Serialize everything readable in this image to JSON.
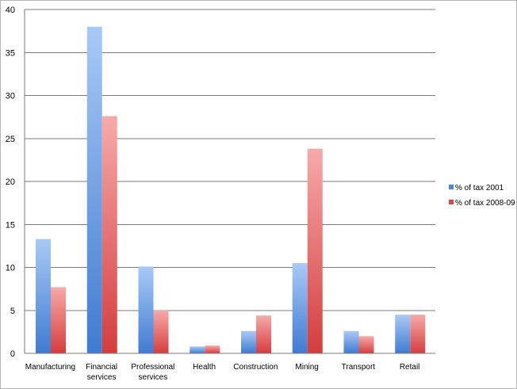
{
  "chart_data": {
    "type": "bar",
    "categories": [
      "Manufacturing",
      "Financial services",
      "Professional services",
      "Health",
      "Construction",
      "Mining",
      "Transport",
      "Retail"
    ],
    "category_lines": [
      [
        "Manufacturing"
      ],
      [
        "Financial",
        "services"
      ],
      [
        "Professional",
        "services"
      ],
      [
        "Health"
      ],
      [
        "Construction"
      ],
      [
        "Mining"
      ],
      [
        "Transport"
      ],
      [
        "Retail"
      ]
    ],
    "series": [
      {
        "name": "% of tax 2001",
        "values": [
          13.3,
          38.0,
          10.1,
          0.8,
          2.6,
          10.5,
          2.6,
          4.5
        ],
        "color": "#4a86d8"
      },
      {
        "name": "% of tax 2008-09",
        "values": [
          7.7,
          27.6,
          5.0,
          0.9,
          4.4,
          23.8,
          2.0,
          4.5
        ],
        "color": "#d84848"
      }
    ],
    "ylim": [
      0,
      40
    ],
    "yticks": [
      0,
      5,
      10,
      15,
      20,
      25,
      30,
      35,
      40
    ],
    "grid": true,
    "legend": "right",
    "title": "",
    "xlabel": "",
    "ylabel": ""
  }
}
